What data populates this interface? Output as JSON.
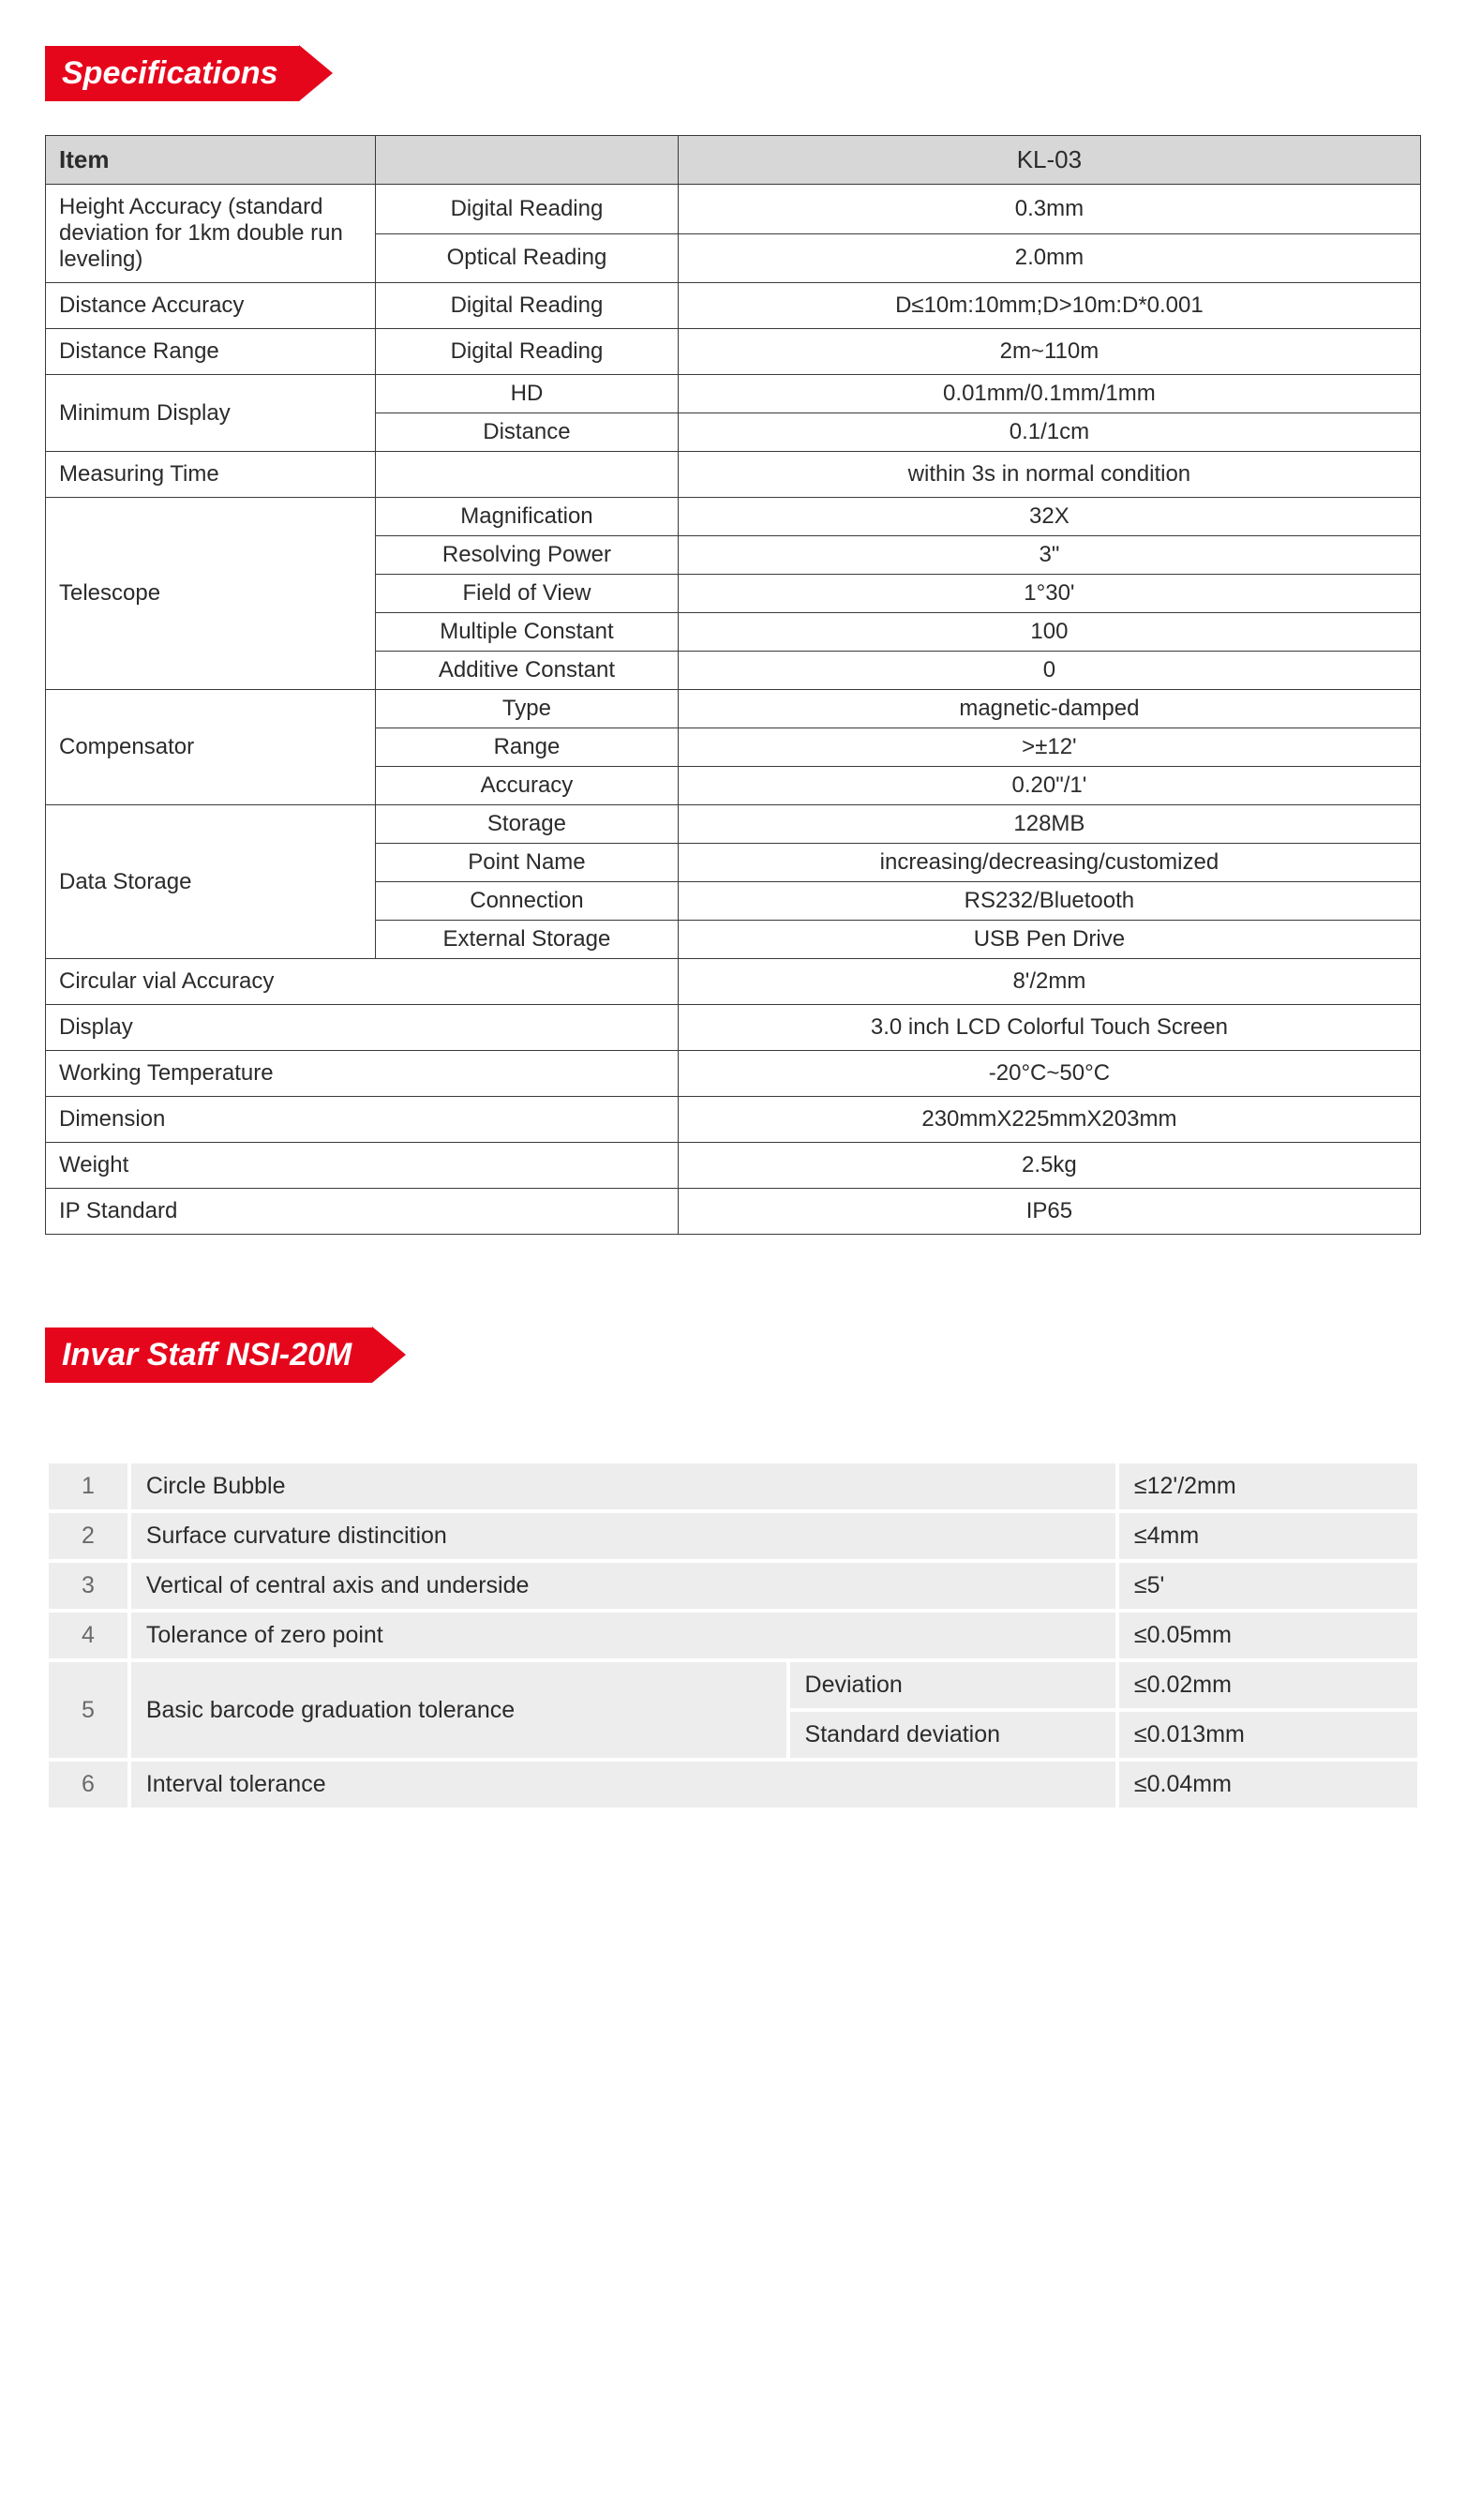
{
  "headers": {
    "specifications": "Specifications",
    "invar_staff": "Invar Staff NSI-20M"
  },
  "colors": {
    "accent": "#e6061c",
    "header_bg": "#d7d7d7",
    "border": "#3a3a3a",
    "invar_row_bg": "#ededed",
    "invar_border": "#ffffff",
    "text": "#2b2b2b"
  },
  "spec_table": {
    "header": {
      "c1": "Item",
      "c2": "",
      "c3": "KL-03"
    },
    "rows": [
      {
        "c1": "Height Accuracy (standard deviation for 1km double run leveling)",
        "rowspan1": 2,
        "c2": "Digital Reading",
        "c3": "0.3mm"
      },
      {
        "c2": "Optical Reading",
        "c3": "2.0mm"
      },
      {
        "c1": "Distance Accuracy",
        "c2": "Digital Reading",
        "c3": "D≤10m:10mm;D>10m:D*0.001"
      },
      {
        "c1": "Distance Range",
        "c2": "Digital Reading",
        "c3": "2m~110m"
      },
      {
        "c1": "Minimum Display",
        "rowspan1": 2,
        "c2": "HD",
        "c3": "0.01mm/0.1mm/1mm"
      },
      {
        "c2": "Distance",
        "c3": "0.1/1cm"
      },
      {
        "c1": "Measuring Time",
        "c2": "",
        "c3": "within 3s in normal condition"
      },
      {
        "c1": "Telescope",
        "rowspan1": 5,
        "c2": "Magnification",
        "c3": "32X"
      },
      {
        "c2": "Resolving Power",
        "c3": "3\""
      },
      {
        "c2": "Field of View",
        "c3": "1°30'"
      },
      {
        "c2": "Multiple Constant",
        "c3": "100"
      },
      {
        "c2": "Additive Constant",
        "c3": "0"
      },
      {
        "c1": "Compensator",
        "rowspan1": 3,
        "c2": "Type",
        "c3": "magnetic-damped"
      },
      {
        "c2": "Range",
        "c3": ">±12'"
      },
      {
        "c2": "Accuracy",
        "c3": "0.20\"/1'"
      },
      {
        "c1": "Data Storage",
        "rowspan1": 4,
        "c2": "Storage",
        "c3": "128MB"
      },
      {
        "c2": "Point Name",
        "c3": "increasing/decreasing/customized"
      },
      {
        "c2": "Connection",
        "c3": "RS232/Bluetooth"
      },
      {
        "c2": "External Storage",
        "c3": "USB Pen Drive"
      },
      {
        "c1": "Circular vial Accuracy",
        "colspan1": 2,
        "c3": "8'/2mm"
      },
      {
        "c1": "Display",
        "colspan1": 2,
        "c3": "3.0 inch LCD Colorful Touch Screen"
      },
      {
        "c1": "Working Temperature",
        "colspan1": 2,
        "c3": "-20°C~50°C"
      },
      {
        "c1": "Dimension",
        "colspan1": 2,
        "c3": "230mmX225mmX203mm"
      },
      {
        "c1": "Weight",
        "colspan1": 2,
        "c3": "2.5kg"
      },
      {
        "c1": "IP Standard",
        "colspan1": 2,
        "c3": "IP65"
      }
    ]
  },
  "invar_table": {
    "rows": [
      {
        "n": "1",
        "label": "Circle Bubble",
        "sub": null,
        "val": "≤12'/2mm"
      },
      {
        "n": "2",
        "label": "Surface curvature distincition",
        "sub": null,
        "val": "≤4mm"
      },
      {
        "n": "3",
        "label": "Vertical of central axis and underside",
        "sub": null,
        "val": "≤5'"
      },
      {
        "n": "4",
        "label": "Tolerance of zero point",
        "sub": null,
        "val": "≤0.05mm"
      },
      {
        "n": "5",
        "label": "Basic barcode graduation tolerance",
        "rowspan": 2,
        "sub": "Deviation",
        "val": "≤0.02mm"
      },
      {
        "sub": "Standard deviation",
        "val": "≤0.013mm"
      },
      {
        "n": "6",
        "label": "Interval tolerance",
        "sub": null,
        "val": "≤0.04mm"
      }
    ]
  }
}
